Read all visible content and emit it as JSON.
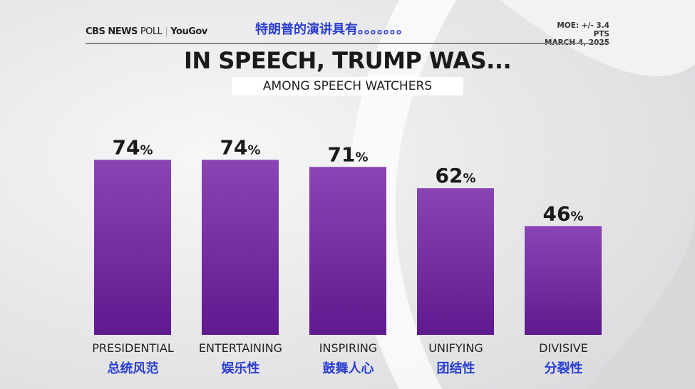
{
  "header": {
    "logo_cbs": "CBS NEWS",
    "logo_poll": "POLL",
    "logo_yougov": "YouGov",
    "annotation_title_cn": "特朗普的演讲具有。。。。。。。",
    "moe": "MOE: +/- 3.4 PTS",
    "date": "MARCH 4, 2025"
  },
  "colors": {
    "bar_top": "#8a45b4",
    "bar_bottom": "#5e1a8e",
    "annotation": "#2b3fd0"
  },
  "chart_data": {
    "type": "bar",
    "title": "IN SPEECH, TRUMP WAS...",
    "subtitle": "AMONG SPEECH WATCHERS",
    "categories": [
      "PRESIDENTIAL",
      "ENTERTAINING",
      "INSPIRING",
      "UNIFYING",
      "DIVISIVE"
    ],
    "categories_cn": [
      "总统风范",
      "娱乐性",
      "鼓舞人心",
      "团结性",
      "分裂性"
    ],
    "values": [
      74,
      74,
      71,
      62,
      46
    ],
    "labels": [
      "74",
      "74",
      "71",
      "62",
      "46"
    ],
    "unit": "%",
    "ylim": [
      0,
      100
    ],
    "grid": false
  }
}
